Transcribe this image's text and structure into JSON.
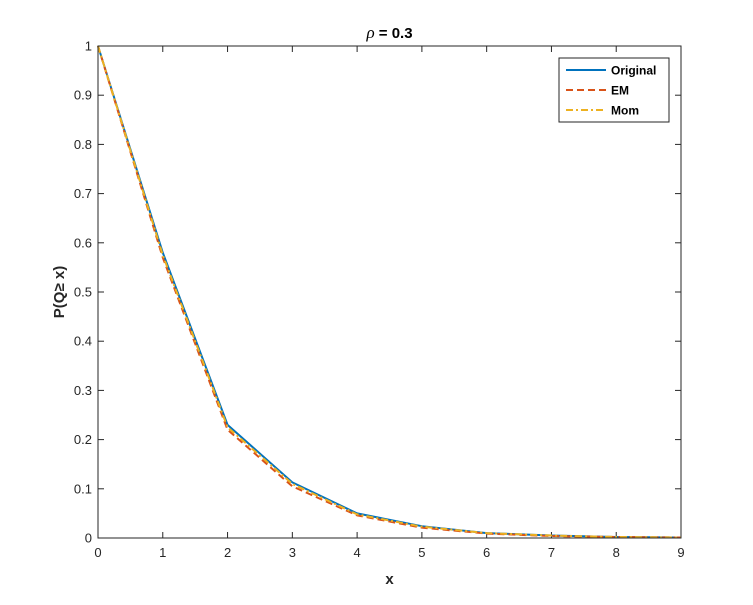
{
  "chart_data": {
    "type": "line",
    "title_symbol": "ρ",
    "title_rest": " = 0.3",
    "xlabel": "x",
    "ylabel": "P(Q≥ x)",
    "xlim": [
      0,
      9
    ],
    "ylim": [
      0,
      1
    ],
    "x_ticks": [
      0,
      1,
      2,
      3,
      4,
      5,
      6,
      7,
      8,
      9
    ],
    "y_ticks": [
      0,
      0.1,
      0.2,
      0.3,
      0.4,
      0.5,
      0.6,
      0.7,
      0.8,
      0.9,
      1
    ],
    "x_tick_labels": [
      "0",
      "1",
      "2",
      "3",
      "4",
      "5",
      "6",
      "7",
      "8",
      "9"
    ],
    "y_tick_labels": [
      "0",
      "0.1",
      "0.2",
      "0.3",
      "0.4",
      "0.5",
      "0.6",
      "0.7",
      "0.8",
      "0.9",
      "1"
    ],
    "x": [
      0,
      1,
      2,
      3,
      4,
      5,
      6,
      7,
      8,
      9
    ],
    "series": [
      {
        "name": "Original",
        "color": "#0072bd",
        "dash": "solid",
        "values": [
          1,
          0.58,
          0.23,
          0.113,
          0.05,
          0.024,
          0.01,
          0.005,
          0.002,
          0.001
        ]
      },
      {
        "name": "EM",
        "color": "#d95319",
        "dash": "dashed",
        "values": [
          1,
          0.57,
          0.22,
          0.105,
          0.046,
          0.021,
          0.009,
          0.004,
          0.002,
          0.001
        ]
      },
      {
        "name": "Mom",
        "color": "#edb120",
        "dash": "dashdot",
        "values": [
          1,
          0.575,
          0.225,
          0.11,
          0.048,
          0.023,
          0.01,
          0.005,
          0.002,
          0.001
        ]
      }
    ],
    "grid": false,
    "box": true,
    "legend_position": "top-right"
  }
}
